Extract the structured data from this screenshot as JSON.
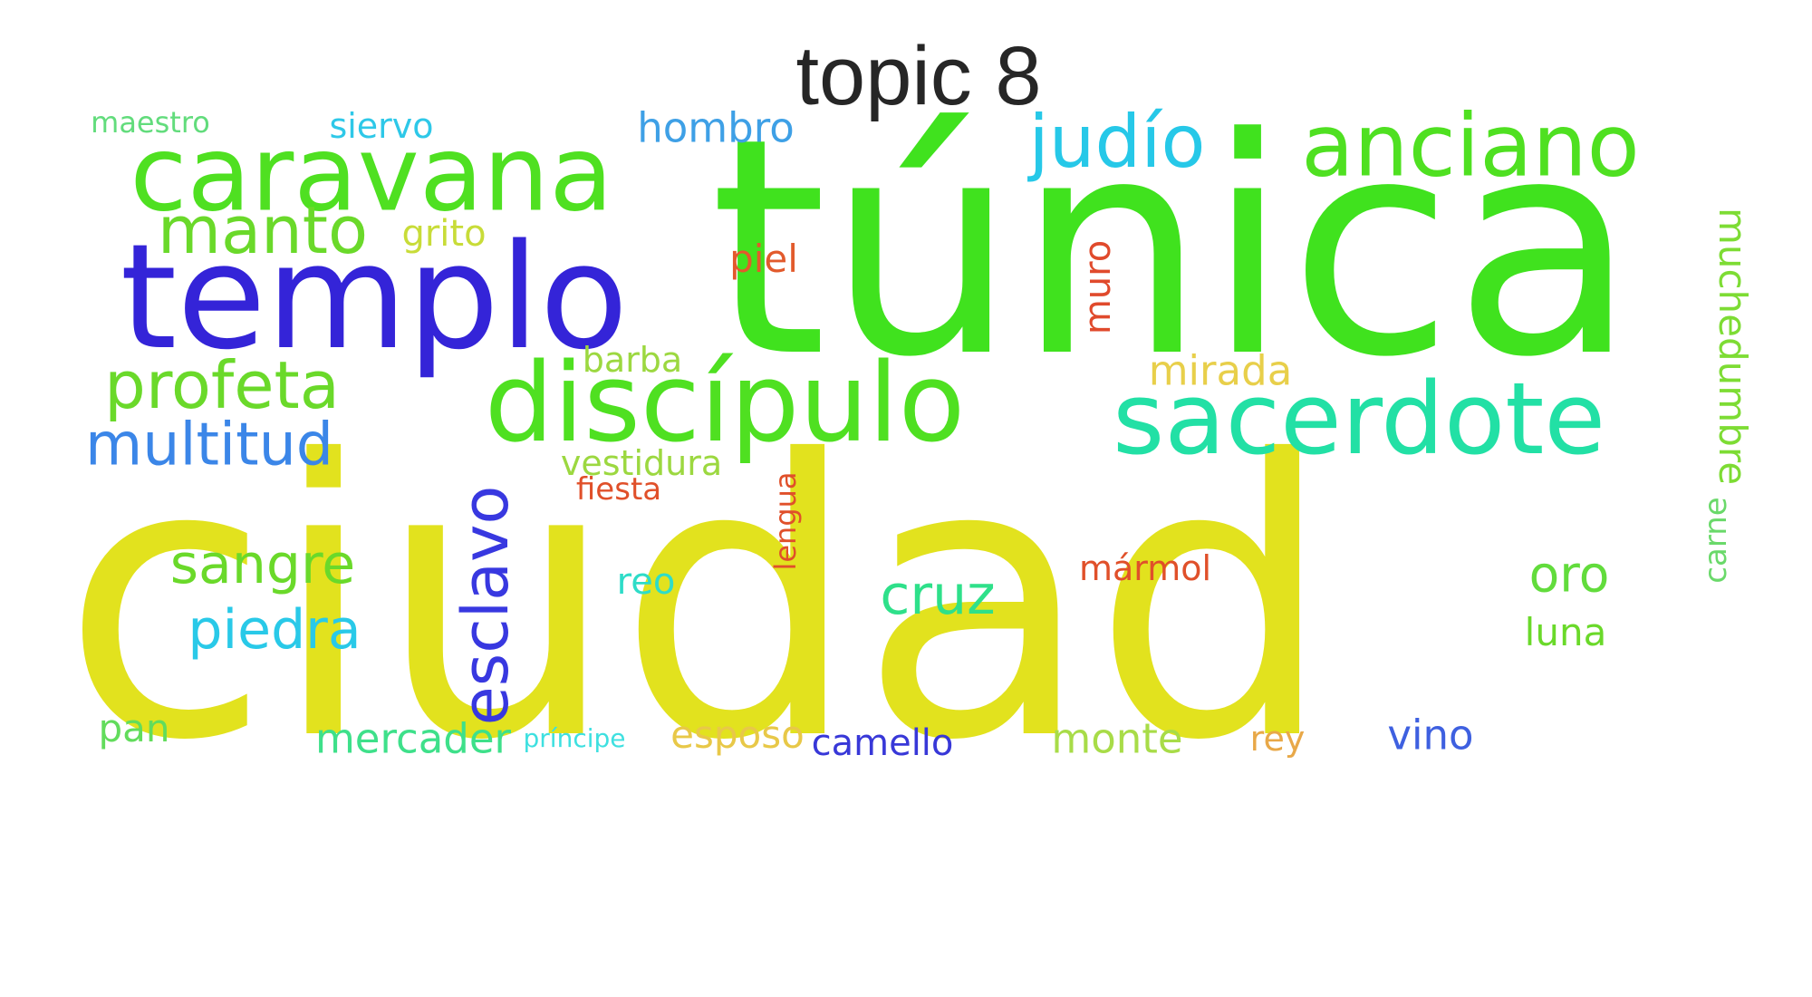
{
  "title": "topic 8",
  "words": [
    {
      "text": "túnica",
      "color": "#40e21e",
      "rot": 0
    },
    {
      "text": "ciudad",
      "color": "#e2e21e",
      "rot": 0
    },
    {
      "text": "templo",
      "color": "#3424d8",
      "rot": 0
    },
    {
      "text": "caravana",
      "color": "#4fe021",
      "rot": 0
    },
    {
      "text": "anciano",
      "color": "#4fe021",
      "rot": 0
    },
    {
      "text": "discípulo",
      "color": "#4fe021",
      "rot": 0
    },
    {
      "text": "sacerdote",
      "color": "#22e0a5",
      "rot": 0
    },
    {
      "text": "judío",
      "color": "#26c8e8",
      "rot": 0
    },
    {
      "text": "manto",
      "color": "#6ad92a",
      "rot": 0
    },
    {
      "text": "profeta",
      "color": "#6ad92a",
      "rot": 0
    },
    {
      "text": "multitud",
      "color": "#3b86e8",
      "rot": 0
    },
    {
      "text": "esclavo",
      "color": "#3838e0",
      "rot": -90
    },
    {
      "text": "sangre",
      "color": "#6ad92a",
      "rot": 0
    },
    {
      "text": "piedra",
      "color": "#29c9e8",
      "rot": 0
    },
    {
      "text": "cruz",
      "color": "#2ee08a",
      "rot": 0
    },
    {
      "text": "oro",
      "color": "#62dc3c",
      "rot": 0
    },
    {
      "text": "muchedumbre",
      "color": "#7ddc34",
      "rot": 90
    },
    {
      "text": "mirada",
      "color": "#e8cf4a",
      "rot": 0
    },
    {
      "text": "hombro",
      "color": "#3ea0e6",
      "rot": 0
    },
    {
      "text": "grito",
      "color": "#c8dc38",
      "rot": 0
    },
    {
      "text": "piel",
      "color": "#e25a2c",
      "rot": 0
    },
    {
      "text": "muro",
      "color": "#e04a2c",
      "rot": -90
    },
    {
      "text": "barba",
      "color": "#9cd840",
      "rot": 0
    },
    {
      "text": "vestidura",
      "color": "#9cd840",
      "rot": 0
    },
    {
      "text": "fiesta",
      "color": "#e0502a",
      "rot": 0
    },
    {
      "text": "lengua",
      "color": "#e0502a",
      "rot": -90
    },
    {
      "text": "mármol",
      "color": "#e0502a",
      "rot": 0
    },
    {
      "text": "reo",
      "color": "#2edcc8",
      "rot": 0
    },
    {
      "text": "luna",
      "color": "#6ad92a",
      "rot": 0
    },
    {
      "text": "carne",
      "color": "#6ad96a",
      "rot": -90
    },
    {
      "text": "maestro",
      "color": "#62dc7c",
      "rot": 0
    },
    {
      "text": "siervo",
      "color": "#2ec8e8",
      "rot": 0
    },
    {
      "text": "pan",
      "color": "#62dc5c",
      "rot": 0
    },
    {
      "text": "mercader",
      "color": "#3ee08a",
      "rot": 0
    },
    {
      "text": "príncipe",
      "color": "#3ee0e0",
      "rot": 0
    },
    {
      "text": "esposo",
      "color": "#e8c848",
      "rot": 0
    },
    {
      "text": "camello",
      "color": "#3838d8",
      "rot": 0
    },
    {
      "text": "monte",
      "color": "#a8dc48",
      "rot": 0
    },
    {
      "text": "rey",
      "color": "#e8a848",
      "rot": 0
    },
    {
      "text": "vino",
      "color": "#3e60e0",
      "rot": 0
    }
  ]
}
